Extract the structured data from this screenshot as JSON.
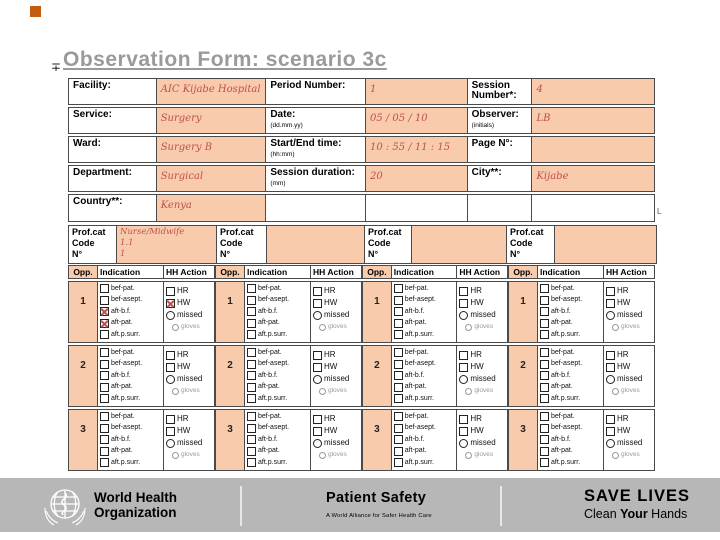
{
  "colors": {
    "value_bg": "#f8cbad",
    "value_ink": "#c0504d",
    "footer_bg": "#b7b7b7",
    "title_ink": "#9a9a9a",
    "accent_square": "#c55a11"
  },
  "slide": {
    "title": "Observation Form: scenario 3c",
    "title_marker": "∓",
    "table_artifact": "L"
  },
  "form": {
    "rows": [
      {
        "l1": "Facility:",
        "s1": "",
        "v1": "AIC Kijabe Hospital",
        "l2": "Period Number:",
        "s2": "",
        "v2": "1",
        "l3": "Session Number*:",
        "s3": "",
        "v3": "4"
      },
      {
        "l1": "Service:",
        "s1": "",
        "v1": "Surgery",
        "l2": "Date:",
        "s2": "(dd.mm.yy)",
        "v2": "05 / 05 / 10",
        "l3": "Observer:",
        "s3": "(initials)",
        "v3": "LB"
      },
      {
        "l1": "Ward:",
        "s1": "",
        "v1": "Surgery B",
        "l2": "Start/End time:",
        "s2": "(hh:mm)",
        "v2": "10 : 55 / 11 : 15",
        "l3": "Page N°:",
        "s3": "",
        "v3": ""
      },
      {
        "l1": "Department:",
        "s1": "",
        "v1": "Surgical",
        "l2": "Session duration:",
        "s2": "(mm)",
        "v2": "20",
        "l3": "City**:",
        "s3": "",
        "v3": "Kijabe"
      },
      {
        "l1": "Country**:",
        "s1": "",
        "v1": "Kenya",
        "l2": "",
        "s2": "",
        "v2": "",
        "l3": "",
        "s3": "",
        "v3": ""
      }
    ]
  },
  "profcat": {
    "label_line1": "Prof.cat",
    "label_line2": "Code",
    "label_line3": "N°",
    "groups": [
      {
        "cat": "Nurse/Midwife",
        "code": "1.1",
        "n": "1"
      },
      {
        "cat": "",
        "code": "",
        "n": ""
      },
      {
        "cat": "",
        "code": "",
        "n": ""
      },
      {
        "cat": "",
        "code": "",
        "n": ""
      }
    ]
  },
  "grid": {
    "headers": {
      "opp": "Opp.",
      "indication": "Indication",
      "action": "HH Action"
    },
    "indications": [
      "bef-pat.",
      "bef-asept.",
      "aft-b.f.",
      "aft-pat.",
      "aft.p.surr."
    ],
    "actions": [
      "HR",
      "HW",
      "missed",
      "gloves"
    ],
    "groups": [
      {
        "rows": [
          {
            "opp": "1",
            "ind": [
              0,
              0,
              1,
              1,
              0
            ],
            "act": [
              0,
              1,
              0,
              0
            ]
          },
          {
            "opp": "2",
            "ind": [
              0,
              0,
              0,
              0,
              0
            ],
            "act": [
              0,
              0,
              0,
              0
            ]
          },
          {
            "opp": "3",
            "ind": [
              0,
              0,
              0,
              0,
              0
            ],
            "act": [
              0,
              0,
              0,
              0
            ]
          }
        ]
      },
      {
        "rows": [
          {
            "opp": "1",
            "ind": [
              0,
              0,
              0,
              0,
              0
            ],
            "act": [
              0,
              0,
              0,
              0
            ]
          },
          {
            "opp": "2",
            "ind": [
              0,
              0,
              0,
              0,
              0
            ],
            "act": [
              0,
              0,
              0,
              0
            ]
          },
          {
            "opp": "3",
            "ind": [
              0,
              0,
              0,
              0,
              0
            ],
            "act": [
              0,
              0,
              0,
              0
            ]
          }
        ]
      },
      {
        "rows": [
          {
            "opp": "1",
            "ind": [
              0,
              0,
              0,
              0,
              0
            ],
            "act": [
              0,
              0,
              0,
              0
            ]
          },
          {
            "opp": "2",
            "ind": [
              0,
              0,
              0,
              0,
              0
            ],
            "act": [
              0,
              0,
              0,
              0
            ]
          },
          {
            "opp": "3",
            "ind": [
              0,
              0,
              0,
              0,
              0
            ],
            "act": [
              0,
              0,
              0,
              0
            ]
          }
        ]
      },
      {
        "rows": [
          {
            "opp": "1",
            "ind": [
              0,
              0,
              0,
              0,
              0
            ],
            "act": [
              0,
              0,
              0,
              0
            ]
          },
          {
            "opp": "2",
            "ind": [
              0,
              0,
              0,
              0,
              0
            ],
            "act": [
              0,
              0,
              0,
              0
            ]
          },
          {
            "opp": "3",
            "ind": [
              0,
              0,
              0,
              0,
              0
            ],
            "act": [
              0,
              0,
              0,
              0
            ]
          }
        ]
      }
    ]
  },
  "footer": {
    "who_line1": "World Health",
    "who_line2": "Organization",
    "program": "Patient Safety",
    "program_sub": "A World Alliance for Safer Health Care",
    "campaign": "SAVE LIVES",
    "clean": "Clean ",
    "your": "Your",
    "hands": " Hands"
  }
}
